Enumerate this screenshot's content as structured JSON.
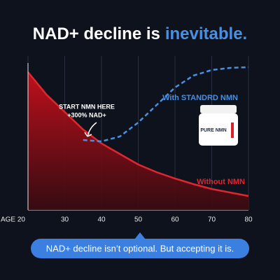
{
  "chart_data": {
    "type": "area-line",
    "title": [
      "NAD+ decline is",
      "inevitable."
    ],
    "x": [
      20,
      25,
      30,
      35,
      40,
      45,
      50,
      55,
      60,
      65,
      70,
      75,
      80
    ],
    "xlim": [
      20,
      80
    ],
    "xticks": [
      {
        "value": 20,
        "label": "AGE 20"
      },
      30,
      40,
      50,
      60,
      70,
      80
    ],
    "ylim": [
      0,
      105
    ],
    "grid": true,
    "series": [
      {
        "name": "Without NMN",
        "color": "#e0262f",
        "values": [
          98.5,
          82.5,
          70,
          57.5,
          47.5,
          40,
          32.5,
          27,
          22.5,
          18.5,
          15,
          12.5,
          10
        ]
      },
      {
        "name": "With STANDRD NMN",
        "color": "#4a8fe0",
        "values": [
          null,
          null,
          null,
          50,
          49,
          52.5,
          62.5,
          75,
          87.5,
          96,
          100,
          101.5,
          102
        ]
      }
    ],
    "annotation": [
      "START NMN HERE",
      "+300% NAD+"
    ],
    "product_label": "PURE NMN",
    "footer": "NAD+ decline isn’t optional. But accepting it is."
  }
}
